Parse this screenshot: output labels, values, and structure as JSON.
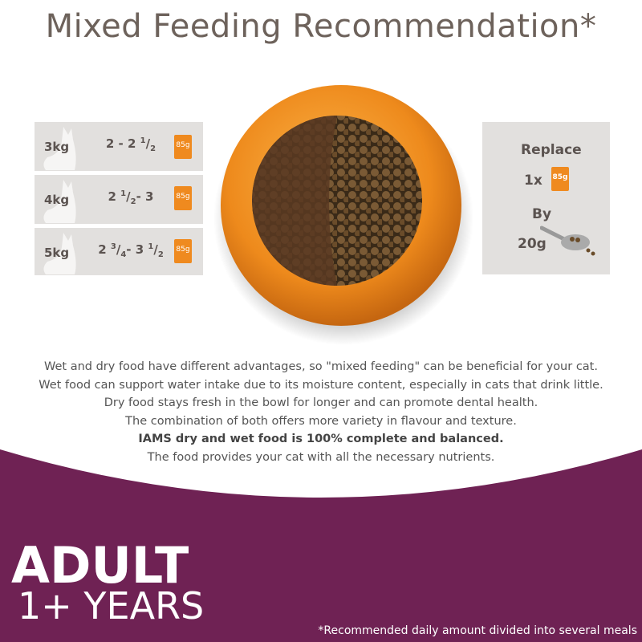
{
  "header": {
    "title": "Mixed Feeding Recommendation*"
  },
  "table": {
    "rows": [
      {
        "weight": "3kg",
        "amount": [
          "2 - 2 ",
          "1",
          "/",
          "2"
        ],
        "pouch": "85g"
      },
      {
        "weight": "4kg",
        "amount": [
          "2 ",
          "1",
          "/",
          "2",
          "- 3"
        ],
        "pouch": "85g"
      },
      {
        "weight": "5kg",
        "amount": [
          "2 ",
          "3",
          "/",
          "4",
          "- 3 ",
          "1",
          "/",
          "2"
        ],
        "pouch": "85g"
      }
    ]
  },
  "replace": {
    "title": "Replace",
    "count": "1x",
    "pouch": "85g",
    "by": "By",
    "dry": "20g"
  },
  "body": {
    "lines": [
      "Wet and dry food have different advantages, so \"mixed feeding\" can be beneficial for your cat.",
      "Wet food can support water intake due to its moisture content, especially in cats that drink little.",
      "Dry food stays fresh in the bowl for longer and can promote dental health.",
      "The combination of both offers more variety in flavour and texture.",
      "IAMS dry and wet food is 100% complete and balanced.",
      "The food provides your cat with all the necessary nutrients."
    ]
  },
  "footer": {
    "age": "ADULT",
    "years": "1+ YEARS",
    "note": "*Recommended daily amount divided into several meals"
  }
}
